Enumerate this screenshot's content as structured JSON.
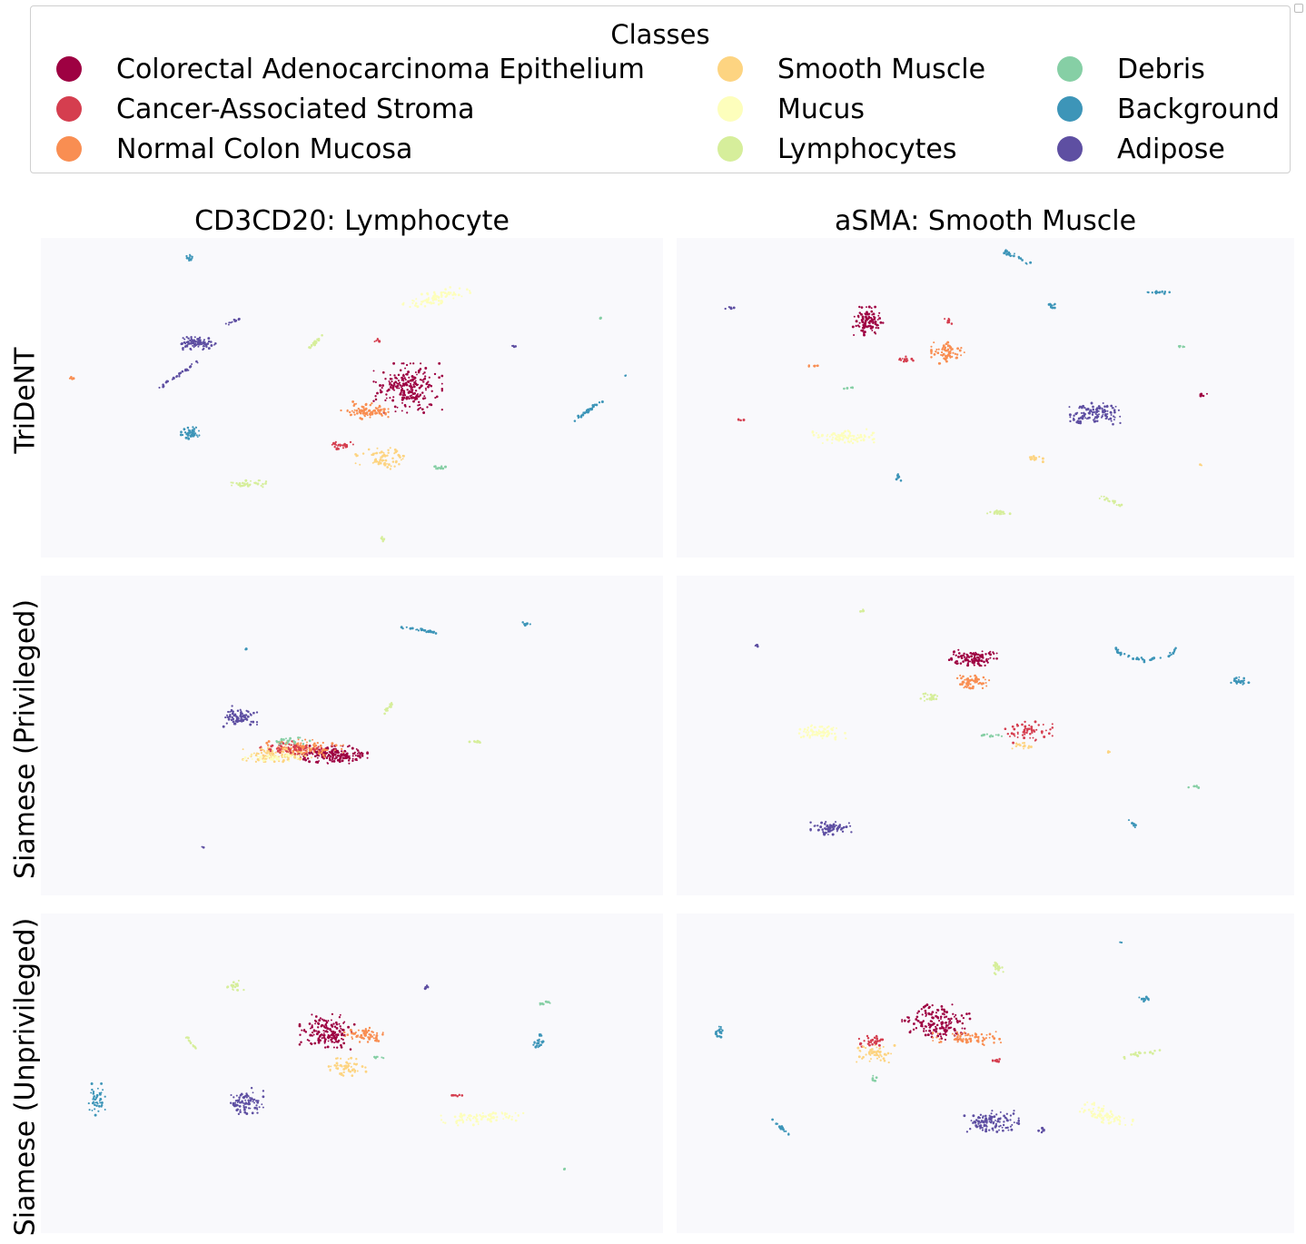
{
  "chart_data": {
    "type": "scatter",
    "legend": {
      "title": "Classes",
      "placement": "top",
      "entries": [
        {
          "name": "Colorectal Adenocarcinoma Epithelium",
          "color": "#9e0142"
        },
        {
          "name": "Cancer-Associated Stroma",
          "color": "#d53e4f"
        },
        {
          "name": "Normal Colon Mucosa",
          "color": "#f98e52"
        },
        {
          "name": "Smooth Muscle",
          "color": "#fdd481"
        },
        {
          "name": "Mucus",
          "color": "#fdfebc"
        },
        {
          "name": "Lymphocytes",
          "color": "#d6ee9b"
        },
        {
          "name": "Debris",
          "color": "#86cfa5"
        },
        {
          "name": "Background",
          "color": "#3d95b8"
        },
        {
          "name": "Adipose",
          "color": "#5e4fa2"
        }
      ]
    },
    "columns": [
      "CD3CD20: Lymphocyte",
      "aSMA: Smooth Muscle"
    ],
    "rows": [
      "TriDeNT",
      "Siamese (Privileged)",
      "Siamese (Unprivileged)"
    ],
    "axes_visible": false,
    "grid": false,
    "panels": [
      {
        "row": "TriDeNT",
        "column": "CD3CD20: Lymphocyte",
        "clusters": [
          {
            "cls": 0,
            "cx": 0.59,
            "cy": 0.47,
            "rx": 0.05,
            "ry": 0.07,
            "n": 230
          },
          {
            "cls": 2,
            "cx": 0.52,
            "cy": 0.54,
            "rx": 0.035,
            "ry": 0.025,
            "n": 90
          },
          {
            "cls": 1,
            "cx": 0.48,
            "cy": 0.65,
            "rx": 0.02,
            "ry": 0.01,
            "n": 30
          },
          {
            "cls": 3,
            "cx": 0.55,
            "cy": 0.69,
            "rx": 0.04,
            "ry": 0.03,
            "n": 70
          },
          {
            "cls": 4,
            "cx": 0.63,
            "cy": 0.19,
            "rx": 0.055,
            "ry": 0.02,
            "n": 90,
            "tilt": -0.25
          },
          {
            "cls": 5,
            "cx": 0.44,
            "cy": 0.33,
            "rx": 0.016,
            "ry": 0.006,
            "n": 25,
            "tilt": -0.8
          },
          {
            "cls": 5,
            "cx": 0.33,
            "cy": 0.77,
            "rx": 0.03,
            "ry": 0.01,
            "n": 35
          },
          {
            "cls": 6,
            "cx": 0.64,
            "cy": 0.72,
            "rx": 0.01,
            "ry": 0.005,
            "n": 12
          },
          {
            "cls": 7,
            "cx": 0.24,
            "cy": 0.06,
            "rx": 0.01,
            "ry": 0.01,
            "n": 15,
            "tilt": -1.0
          },
          {
            "cls": 7,
            "cx": 0.24,
            "cy": 0.61,
            "rx": 0.016,
            "ry": 0.018,
            "n": 45
          },
          {
            "cls": 7,
            "cx": 0.88,
            "cy": 0.54,
            "rx": 0.025,
            "ry": 0.005,
            "n": 35,
            "tilt": -0.6
          },
          {
            "cls": 8,
            "cx": 0.25,
            "cy": 0.33,
            "rx": 0.028,
            "ry": 0.018,
            "n": 90
          },
          {
            "cls": 8,
            "cx": 0.22,
            "cy": 0.43,
            "rx": 0.035,
            "ry": 0.005,
            "n": 35,
            "tilt": -0.6
          },
          {
            "cls": 8,
            "cx": 0.31,
            "cy": 0.26,
            "rx": 0.012,
            "ry": 0.004,
            "n": 12,
            "tilt": -0.4
          },
          {
            "cls": 1,
            "cx": 0.54,
            "cy": 0.32,
            "rx": 0.005,
            "ry": 0.005,
            "n": 6
          },
          {
            "cls": 2,
            "cx": 0.05,
            "cy": 0.44,
            "rx": 0.005,
            "ry": 0.004,
            "n": 5
          },
          {
            "cls": 5,
            "cx": 0.55,
            "cy": 0.94,
            "rx": 0.004,
            "ry": 0.012,
            "n": 8
          },
          {
            "cls": 8,
            "cx": 0.76,
            "cy": 0.34,
            "rx": 0.005,
            "ry": 0.003,
            "n": 5
          },
          {
            "cls": 6,
            "cx": 0.9,
            "cy": 0.25,
            "rx": 0.003,
            "ry": 0.003,
            "n": 3
          },
          {
            "cls": 7,
            "cx": 0.94,
            "cy": 0.43,
            "rx": 0.002,
            "ry": 0.002,
            "n": 3
          }
        ]
      },
      {
        "row": "TriDeNT",
        "column": "aSMA: Smooth Muscle",
        "clusters": [
          {
            "cls": 0,
            "cx": 0.31,
            "cy": 0.26,
            "rx": 0.022,
            "ry": 0.04,
            "n": 110
          },
          {
            "cls": 2,
            "cx": 0.44,
            "cy": 0.36,
            "rx": 0.025,
            "ry": 0.03,
            "n": 70
          },
          {
            "cls": 1,
            "cx": 0.37,
            "cy": 0.38,
            "rx": 0.012,
            "ry": 0.008,
            "n": 15
          },
          {
            "cls": 1,
            "cx": 0.44,
            "cy": 0.26,
            "rx": 0.006,
            "ry": 0.01,
            "n": 8
          },
          {
            "cls": 8,
            "cx": 0.68,
            "cy": 0.55,
            "rx": 0.04,
            "ry": 0.03,
            "n": 120
          },
          {
            "cls": 4,
            "cx": 0.27,
            "cy": 0.62,
            "rx": 0.045,
            "ry": 0.02,
            "n": 90
          },
          {
            "cls": 3,
            "cx": 0.58,
            "cy": 0.69,
            "rx": 0.012,
            "ry": 0.012,
            "n": 15
          },
          {
            "cls": 5,
            "cx": 0.52,
            "cy": 0.86,
            "rx": 0.02,
            "ry": 0.01,
            "n": 25
          },
          {
            "cls": 5,
            "cx": 0.7,
            "cy": 0.82,
            "rx": 0.02,
            "ry": 0.007,
            "n": 18,
            "tilt": 0.4
          },
          {
            "cls": 7,
            "cx": 0.55,
            "cy": 0.06,
            "rx": 0.025,
            "ry": 0.008,
            "n": 25,
            "tilt": 0.4
          },
          {
            "cls": 7,
            "cx": 0.61,
            "cy": 0.21,
            "rx": 0.008,
            "ry": 0.01,
            "n": 12
          },
          {
            "cls": 7,
            "cx": 0.78,
            "cy": 0.17,
            "rx": 0.02,
            "ry": 0.004,
            "n": 20
          },
          {
            "cls": 7,
            "cx": 0.36,
            "cy": 0.75,
            "rx": 0.005,
            "ry": 0.01,
            "n": 8,
            "tilt": -0.8
          },
          {
            "cls": 8,
            "cx": 0.09,
            "cy": 0.22,
            "rx": 0.01,
            "ry": 0.004,
            "n": 8
          },
          {
            "cls": 2,
            "cx": 0.22,
            "cy": 0.4,
            "rx": 0.01,
            "ry": 0.003,
            "n": 7
          },
          {
            "cls": 6,
            "cx": 0.82,
            "cy": 0.34,
            "rx": 0.008,
            "ry": 0.003,
            "n": 6
          },
          {
            "cls": 6,
            "cx": 0.28,
            "cy": 0.47,
            "rx": 0.008,
            "ry": 0.003,
            "n": 5
          },
          {
            "cls": 0,
            "cx": 0.85,
            "cy": 0.49,
            "rx": 0.008,
            "ry": 0.006,
            "n": 7
          },
          {
            "cls": 1,
            "cx": 0.1,
            "cy": 0.57,
            "rx": 0.008,
            "ry": 0.004,
            "n": 5
          },
          {
            "cls": 3,
            "cx": 0.85,
            "cy": 0.71,
            "rx": 0.003,
            "ry": 0.003,
            "n": 3
          }
        ]
      },
      {
        "row": "Siamese (Privileged)",
        "column": "CD3CD20: Lymphocyte",
        "clusters": [
          {
            "cls": 8,
            "cx": 0.32,
            "cy": 0.44,
            "rx": 0.025,
            "ry": 0.03,
            "n": 90
          },
          {
            "cls": 0,
            "cx": 0.47,
            "cy": 0.56,
            "rx": 0.05,
            "ry": 0.025,
            "n": 170
          },
          {
            "cls": 2,
            "cx": 0.42,
            "cy": 0.54,
            "rx": 0.06,
            "ry": 0.025,
            "n": 130
          },
          {
            "cls": 3,
            "cx": 0.38,
            "cy": 0.56,
            "rx": 0.05,
            "ry": 0.02,
            "n": 110
          },
          {
            "cls": 1,
            "cx": 0.4,
            "cy": 0.54,
            "rx": 0.05,
            "ry": 0.02,
            "n": 60
          },
          {
            "cls": 6,
            "cx": 0.4,
            "cy": 0.52,
            "rx": 0.03,
            "ry": 0.012,
            "n": 25
          },
          {
            "cls": 4,
            "cx": 0.37,
            "cy": 0.57,
            "rx": 0.04,
            "ry": 0.012,
            "n": 40
          },
          {
            "cls": 5,
            "cx": 0.56,
            "cy": 0.41,
            "rx": 0.012,
            "ry": 0.005,
            "n": 15,
            "tilt": -0.9
          },
          {
            "cls": 5,
            "cx": 0.7,
            "cy": 0.52,
            "rx": 0.01,
            "ry": 0.004,
            "n": 10
          },
          {
            "cls": 7,
            "cx": 0.61,
            "cy": 0.17,
            "rx": 0.03,
            "ry": 0.004,
            "n": 30,
            "tilt": 0.15
          },
          {
            "cls": 7,
            "cx": 0.78,
            "cy": 0.15,
            "rx": 0.006,
            "ry": 0.005,
            "n": 10
          },
          {
            "cls": 7,
            "cx": 0.33,
            "cy": 0.23,
            "rx": 0.002,
            "ry": 0.003,
            "n": 3
          },
          {
            "cls": 8,
            "cx": 0.26,
            "cy": 0.85,
            "rx": 0.002,
            "ry": 0.002,
            "n": 2
          }
        ]
      },
      {
        "row": "Siamese (Privileged)",
        "column": "aSMA: Smooth Muscle",
        "clusters": [
          {
            "cls": 0,
            "cx": 0.48,
            "cy": 0.26,
            "rx": 0.035,
            "ry": 0.025,
            "n": 110
          },
          {
            "cls": 2,
            "cx": 0.48,
            "cy": 0.33,
            "rx": 0.025,
            "ry": 0.02,
            "n": 60
          },
          {
            "cls": 5,
            "cx": 0.41,
            "cy": 0.38,
            "rx": 0.015,
            "ry": 0.015,
            "n": 25
          },
          {
            "cls": 4,
            "cx": 0.23,
            "cy": 0.49,
            "rx": 0.04,
            "ry": 0.02,
            "n": 70
          },
          {
            "cls": 1,
            "cx": 0.57,
            "cy": 0.49,
            "rx": 0.035,
            "ry": 0.03,
            "n": 55
          },
          {
            "cls": 3,
            "cx": 0.56,
            "cy": 0.53,
            "rx": 0.015,
            "ry": 0.01,
            "n": 15
          },
          {
            "cls": 6,
            "cx": 0.51,
            "cy": 0.5,
            "rx": 0.015,
            "ry": 0.004,
            "n": 10
          },
          {
            "cls": 8,
            "cx": 0.25,
            "cy": 0.79,
            "rx": 0.03,
            "ry": 0.018,
            "n": 80
          },
          {
            "cls": 7,
            "cx": 0.76,
            "cy": 0.24,
            "rx": 0.045,
            "ry": 0.004,
            "n": 40,
            "arc": true
          },
          {
            "cls": 7,
            "cx": 0.91,
            "cy": 0.33,
            "rx": 0.015,
            "ry": 0.012,
            "n": 25
          },
          {
            "cls": 7,
            "cx": 0.74,
            "cy": 0.78,
            "rx": 0.01,
            "ry": 0.004,
            "n": 8,
            "tilt": 0.8
          },
          {
            "cls": 6,
            "cx": 0.84,
            "cy": 0.66,
            "rx": 0.01,
            "ry": 0.003,
            "n": 8
          },
          {
            "cls": 5,
            "cx": 0.3,
            "cy": 0.11,
            "rx": 0.004,
            "ry": 0.01,
            "n": 6
          },
          {
            "cls": 8,
            "cx": 0.13,
            "cy": 0.22,
            "rx": 0.004,
            "ry": 0.004,
            "n": 5
          },
          {
            "cls": 3,
            "cx": 0.7,
            "cy": 0.55,
            "rx": 0.004,
            "ry": 0.004,
            "n": 3
          }
        ]
      },
      {
        "row": "Siamese (Unprivileged)",
        "column": "CD3CD20: Lymphocyte",
        "clusters": [
          {
            "cls": 0,
            "cx": 0.46,
            "cy": 0.37,
            "rx": 0.04,
            "ry": 0.05,
            "n": 160
          },
          {
            "cls": 2,
            "cx": 0.52,
            "cy": 0.38,
            "rx": 0.03,
            "ry": 0.02,
            "n": 60
          },
          {
            "cls": 3,
            "cx": 0.49,
            "cy": 0.48,
            "rx": 0.03,
            "ry": 0.025,
            "n": 55
          },
          {
            "cls": 6,
            "cx": 0.54,
            "cy": 0.45,
            "rx": 0.012,
            "ry": 0.005,
            "n": 8
          },
          {
            "cls": 4,
            "cx": 0.71,
            "cy": 0.64,
            "rx": 0.06,
            "ry": 0.02,
            "n": 90,
            "tilt": -0.1
          },
          {
            "cls": 1,
            "cx": 0.67,
            "cy": 0.57,
            "rx": 0.01,
            "ry": 0.004,
            "n": 8
          },
          {
            "cls": 8,
            "cx": 0.33,
            "cy": 0.59,
            "rx": 0.025,
            "ry": 0.04,
            "n": 90
          },
          {
            "cls": 5,
            "cx": 0.31,
            "cy": 0.23,
            "rx": 0.015,
            "ry": 0.018,
            "n": 20
          },
          {
            "cls": 5,
            "cx": 0.24,
            "cy": 0.4,
            "rx": 0.014,
            "ry": 0.004,
            "n": 15,
            "tilt": 0.9
          },
          {
            "cls": 7,
            "cx": 0.09,
            "cy": 0.58,
            "rx": 0.012,
            "ry": 0.05,
            "n": 45
          },
          {
            "cls": 7,
            "cx": 0.8,
            "cy": 0.4,
            "rx": 0.008,
            "ry": 0.02,
            "n": 25
          },
          {
            "cls": 6,
            "cx": 0.81,
            "cy": 0.28,
            "rx": 0.012,
            "ry": 0.005,
            "n": 10
          },
          {
            "cls": 8,
            "cx": 0.62,
            "cy": 0.23,
            "rx": 0.004,
            "ry": 0.008,
            "n": 8
          },
          {
            "cls": 6,
            "cx": 0.84,
            "cy": 0.8,
            "rx": 0.002,
            "ry": 0.002,
            "n": 2
          }
        ]
      },
      {
        "row": "Siamese (Unprivileged)",
        "column": "aSMA: Smooth Muscle",
        "clusters": [
          {
            "cls": 0,
            "cx": 0.42,
            "cy": 0.34,
            "rx": 0.05,
            "ry": 0.05,
            "n": 160
          },
          {
            "cls": 2,
            "cx": 0.47,
            "cy": 0.39,
            "rx": 0.05,
            "ry": 0.02,
            "n": 80
          },
          {
            "cls": 1,
            "cx": 0.32,
            "cy": 0.4,
            "rx": 0.025,
            "ry": 0.015,
            "n": 35
          },
          {
            "cls": 3,
            "cx": 0.32,
            "cy": 0.44,
            "rx": 0.03,
            "ry": 0.025,
            "n": 55
          },
          {
            "cls": 6,
            "cx": 0.32,
            "cy": 0.52,
            "rx": 0.006,
            "ry": 0.015,
            "n": 10
          },
          {
            "cls": 5,
            "cx": 0.52,
            "cy": 0.17,
            "rx": 0.008,
            "ry": 0.025,
            "n": 20
          },
          {
            "cls": 5,
            "cx": 0.75,
            "cy": 0.44,
            "rx": 0.03,
            "ry": 0.006,
            "n": 18,
            "tilt": -0.2
          },
          {
            "cls": 4,
            "cx": 0.69,
            "cy": 0.63,
            "rx": 0.045,
            "ry": 0.025,
            "n": 80,
            "tilt": 0.3
          },
          {
            "cls": 8,
            "cx": 0.51,
            "cy": 0.65,
            "rx": 0.04,
            "ry": 0.03,
            "n": 110
          },
          {
            "cls": 8,
            "cx": 0.59,
            "cy": 0.68,
            "rx": 0.005,
            "ry": 0.008,
            "n": 8
          },
          {
            "cls": 1,
            "cx": 0.52,
            "cy": 0.46,
            "rx": 0.01,
            "ry": 0.004,
            "n": 8
          },
          {
            "cls": 7,
            "cx": 0.07,
            "cy": 0.37,
            "rx": 0.006,
            "ry": 0.02,
            "n": 20
          },
          {
            "cls": 7,
            "cx": 0.76,
            "cy": 0.27,
            "rx": 0.012,
            "ry": 0.008,
            "n": 15
          },
          {
            "cls": 7,
            "cx": 0.17,
            "cy": 0.67,
            "rx": 0.018,
            "ry": 0.004,
            "n": 15,
            "tilt": 0.7
          },
          {
            "cls": 7,
            "cx": 0.72,
            "cy": 0.09,
            "rx": 0.002,
            "ry": 0.002,
            "n": 2
          }
        ]
      }
    ]
  }
}
